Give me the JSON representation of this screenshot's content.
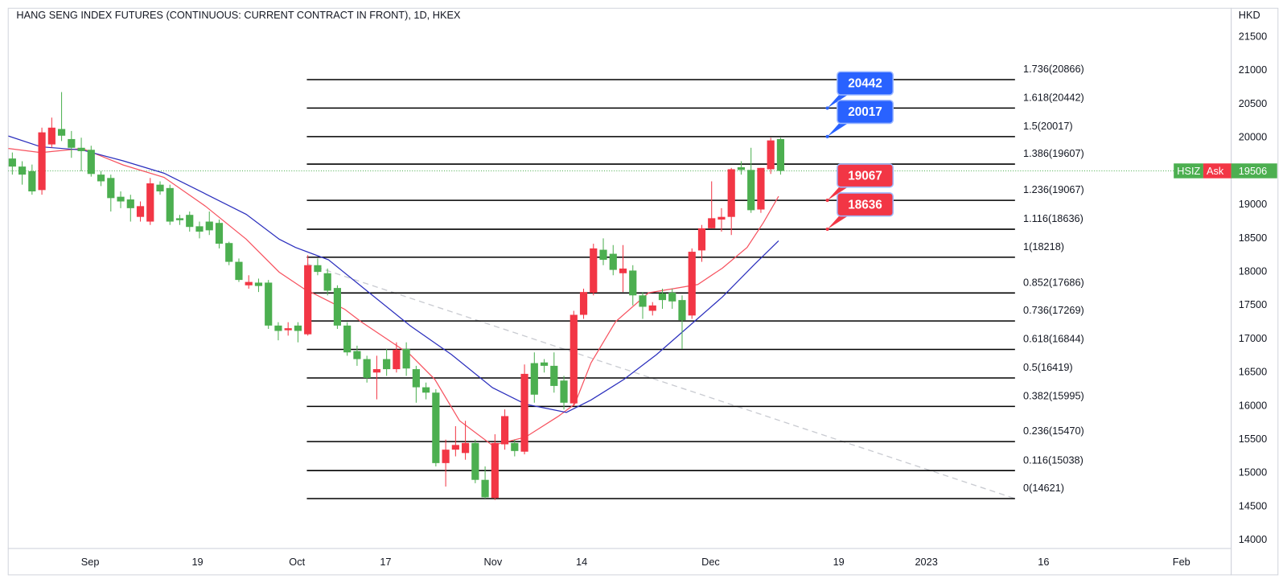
{
  "chart_data": {
    "type": "candlestick",
    "title": "HANG SENG INDEX FUTURES (CONTINUOUS: CURRENT CONTRACT IN FRONT), 1D, HKEX",
    "currency": "HKD",
    "up_color": "#f23645",
    "down_color": "#4caf50",
    "x": [
      0,
      1,
      2,
      3,
      4,
      5,
      6,
      7,
      8,
      9,
      10,
      11,
      12,
      13,
      14,
      15,
      16,
      17,
      18,
      19,
      20,
      21,
      22,
      23,
      24,
      25,
      26,
      27,
      28,
      29,
      30,
      31,
      32,
      33,
      34,
      35,
      36,
      37,
      38,
      39,
      40,
      41,
      42,
      43,
      44,
      45,
      46,
      47,
      48,
      49,
      50,
      51,
      52,
      53,
      54,
      55,
      56,
      57,
      58,
      59,
      60,
      61,
      62,
      63,
      64,
      65,
      66,
      67,
      68,
      69,
      70,
      71,
      72,
      73,
      74,
      75,
      76,
      77,
      78
    ],
    "open": [
      19690,
      19570,
      19500,
      19220,
      19900,
      20130,
      19980,
      19850,
      19820,
      19450,
      19400,
      19120,
      19080,
      18820,
      18750,
      19300,
      19250,
      18800,
      18850,
      18680,
      18750,
      18730,
      18430,
      18150,
      17800,
      17840,
      17840,
      17200,
      17130,
      17200,
      17070,
      18100,
      17980,
      17760,
      17200,
      16820,
      16700,
      16500,
      16700,
      16550,
      16850,
      16550,
      16280,
      16200,
      15150,
      15350,
      15300,
      15450,
      14900,
      14630,
      15430,
      15450,
      15320,
      16640,
      16650,
      16600,
      16380,
      16040,
      17360,
      17690,
      18330,
      18270,
      17980,
      18020,
      17650,
      17420,
      17680,
      17690,
      17580,
      17350,
      18320,
      18650,
      18780,
      18820,
      19560,
      19520,
      18930,
      19530,
      19980
    ],
    "high": [
      19780,
      19650,
      19600,
      20150,
      20300,
      20680,
      20100,
      20000,
      19880,
      19500,
      19450,
      19200,
      19150,
      19050,
      19400,
      19350,
      19300,
      18850,
      18900,
      18750,
      18900,
      18780,
      18450,
      18200,
      17950,
      17900,
      17880,
      17250,
      17250,
      17250,
      18250,
      18200,
      18050,
      17800,
      17250,
      16900,
      16750,
      16750,
      16850,
      16950,
      16950,
      16600,
      16350,
      16250,
      15500,
      15700,
      15780,
      15500,
      15100,
      15580,
      15950,
      15500,
      16620,
      16800,
      16700,
      16800,
      16450,
      17420,
      17750,
      18420,
      18500,
      18400,
      18400,
      18100,
      17700,
      17550,
      17750,
      17750,
      17650,
      18350,
      18700,
      19350,
      18950,
      19550,
      19650,
      19850,
      19550,
      20000,
      20000
    ],
    "low": [
      19450,
      19300,
      19150,
      19150,
      19850,
      19950,
      19700,
      19500,
      19420,
      19280,
      18900,
      18950,
      18750,
      18750,
      18700,
      19150,
      18700,
      18700,
      18600,
      18500,
      18550,
      18350,
      18100,
      17850,
      17750,
      17700,
      17150,
      16980,
      17050,
      16950,
      17050,
      17950,
      17650,
      17150,
      16750,
      16600,
      16350,
      16100,
      16450,
      16500,
      16450,
      16050,
      16100,
      15100,
      14800,
      15250,
      15200,
      14850,
      14621,
      14600,
      15350,
      15250,
      15280,
      16050,
      16500,
      16200,
      15950,
      16000,
      17300,
      17650,
      18100,
      17950,
      17700,
      17500,
      17300,
      17350,
      17450,
      17450,
      16850,
      17300,
      18150,
      18650,
      18600,
      18550,
      19450,
      18880,
      18880,
      19460,
      19450
    ],
    "close": [
      19570,
      19450,
      19200,
      20080,
      20150,
      20030,
      19850,
      19800,
      19460,
      19350,
      19100,
      19050,
      18950,
      18980,
      19320,
      19200,
      18750,
      18770,
      18670,
      18600,
      18620,
      18420,
      18150,
      17880,
      17850,
      17790,
      17200,
      17120,
      17160,
      17120,
      18100,
      18000,
      17720,
      17200,
      16800,
      16700,
      16420,
      16550,
      16550,
      16840,
      16560,
      16280,
      16200,
      15150,
      15350,
      15420,
      15450,
      14900,
      14640,
      15450,
      15850,
      15330,
      16480,
      16170,
      16600,
      16300,
      16050,
      17360,
      17700,
      18350,
      18180,
      18030,
      18050,
      17650,
      17480,
      17500,
      17580,
      17560,
      17280,
      18300,
      18650,
      18800,
      18820,
      19530,
      19520,
      18920,
      19550,
      19960,
      19506
    ],
    "xlim": [
      -0.42,
      123.75
    ],
    "ylim": [
      13877,
      21930
    ],
    "yticks": [
      14000,
      14500,
      15000,
      15500,
      16000,
      16500,
      17000,
      17500,
      18000,
      18500,
      19000,
      19500,
      20000,
      20500,
      21000,
      21500
    ],
    "xticks": [
      {
        "value": 7.9,
        "label": "Sep"
      },
      {
        "value": 18.8,
        "label": "19"
      },
      {
        "value": 28.9,
        "label": "Oct"
      },
      {
        "value": 37.9,
        "label": "17"
      },
      {
        "value": 48.8,
        "label": "Nov"
      },
      {
        "value": 57.8,
        "label": "14"
      },
      {
        "value": 70.9,
        "label": "Dec"
      },
      {
        "value": 83.9,
        "label": "19"
      },
      {
        "value": 92.8,
        "label": "2023"
      },
      {
        "value": 104.7,
        "label": "16"
      },
      {
        "value": 118.7,
        "label": "Feb"
      }
    ],
    "grid": false,
    "moving_averages": [
      {
        "color": "#f7525f",
        "x": [
          -0.4,
          2.9,
          7.1,
          11.25,
          15.4,
          19.6,
          23.75,
          27.1,
          29.6,
          32.1,
          33.75,
          35.4,
          37.9,
          40.4,
          42.9,
          45.4,
          48.75,
          52.1,
          55.4,
          57.1,
          58.75,
          61.25,
          64.6,
          67.1,
          69.6,
          72.1,
          74.6,
          76.25,
          77.8
        ],
        "values": [
          19840,
          19779,
          19840,
          19594,
          19410,
          18980,
          18488,
          17996,
          17750,
          17566,
          17443,
          17258,
          17012,
          16766,
          16398,
          15783,
          15414,
          15537,
          15844,
          16029,
          16643,
          17258,
          17688,
          17750,
          17812,
          18057,
          18365,
          18734,
          19127
        ]
      },
      {
        "color": "#2a2ebd",
        "x": [
          -0.4,
          2.9,
          7.1,
          11.25,
          15.4,
          19.6,
          23.75,
          27.1,
          28.75,
          32.1,
          36.25,
          40.4,
          44.6,
          48.75,
          52.1,
          56.25,
          58.75,
          62.1,
          65.4,
          68.75,
          72.1,
          75.4,
          77.8
        ],
        "values": [
          20025,
          19865,
          19816,
          19656,
          19471,
          19164,
          18857,
          18488,
          18365,
          18180,
          17688,
          17197,
          16766,
          16275,
          16029,
          15906,
          16090,
          16398,
          16766,
          17197,
          17627,
          18119,
          18463
        ]
      }
    ],
    "fib": {
      "color": "#000000",
      "x": [
        29.9,
        101.8
      ],
      "levels": [
        {
          "value": 20866,
          "label": "1.736(20866)"
        },
        {
          "value": 20442,
          "label": "1.618(20442)"
        },
        {
          "value": 20017,
          "label": "1.5(20017)"
        },
        {
          "value": 19607,
          "label": "1.386(19607)"
        },
        {
          "value": 19067,
          "label": "1.236(19067)"
        },
        {
          "value": 18636,
          "label": "1.116(18636)"
        },
        {
          "value": 18218,
          "label": "1(18218)"
        },
        {
          "value": 17686,
          "label": "0.852(17686)"
        },
        {
          "value": 17269,
          "label": "0.736(17269)"
        },
        {
          "value": 16844,
          "label": "0.618(16844)"
        },
        {
          "value": 16419,
          "label": "0.5(16419)"
        },
        {
          "value": 15995,
          "label": "0.382(15995)"
        },
        {
          "value": 15470,
          "label": "0.236(15470)"
        },
        {
          "value": 15038,
          "label": "0.116(15038)"
        },
        {
          "value": 14621,
          "label": "0(14621)"
        }
      ]
    },
    "trendline": {
      "color": "#c9cbd1",
      "x": [
        29.9,
        101.8
      ],
      "values": [
        18120,
        14621
      ]
    },
    "callout_x": 82.75,
    "callouts": [
      {
        "value": 20442,
        "color": "#2962ff"
      },
      {
        "value": 20017,
        "color": "#2962ff"
      },
      {
        "value": 19067,
        "color": "#f23645"
      },
      {
        "value": 18636,
        "color": "#f23645"
      }
    ],
    "last_price": {
      "value": 19506,
      "symbol": "HSIZ",
      "side": "Ask"
    }
  }
}
